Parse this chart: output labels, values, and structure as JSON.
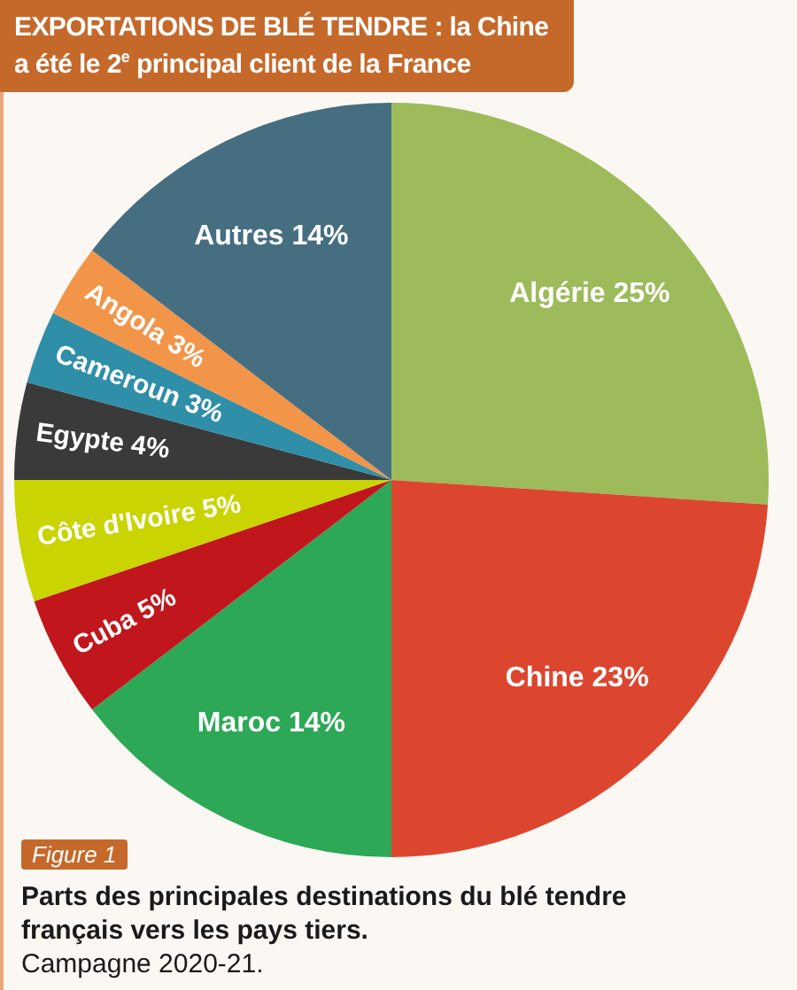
{
  "chart_data": {
    "type": "pie",
    "title": "EXPORTATIONS DE BLÉ TENDRE : la Chine a été le 2$^{e}$ principal client de la France",
    "categories": [
      "Algérie",
      "Chine",
      "Maroc",
      "Cuba",
      "Côte d'Ivoire",
      "Egypte",
      "Cameroun",
      "Angola",
      "Autres"
    ],
    "values": [
      25,
      23,
      14,
      5,
      5,
      4,
      3,
      3,
      14
    ],
    "value_labels": [
      "25%",
      "23%",
      "14%",
      "5%",
      "5%",
      "4%",
      "3%",
      "3%",
      "14%"
    ],
    "colors": [
      "#9dbb5a",
      "#dc462f",
      "#2ca856",
      "#c1161b",
      "#c9d400",
      "#3a3a3a",
      "#2f8ea8",
      "#f29549",
      "#466e81"
    ],
    "annotations": [
      "Figure 1",
      "Parts des principales destinations du blé tendre français vers les pays tiers.",
      "Campagne 2020-21."
    ]
  }
}
